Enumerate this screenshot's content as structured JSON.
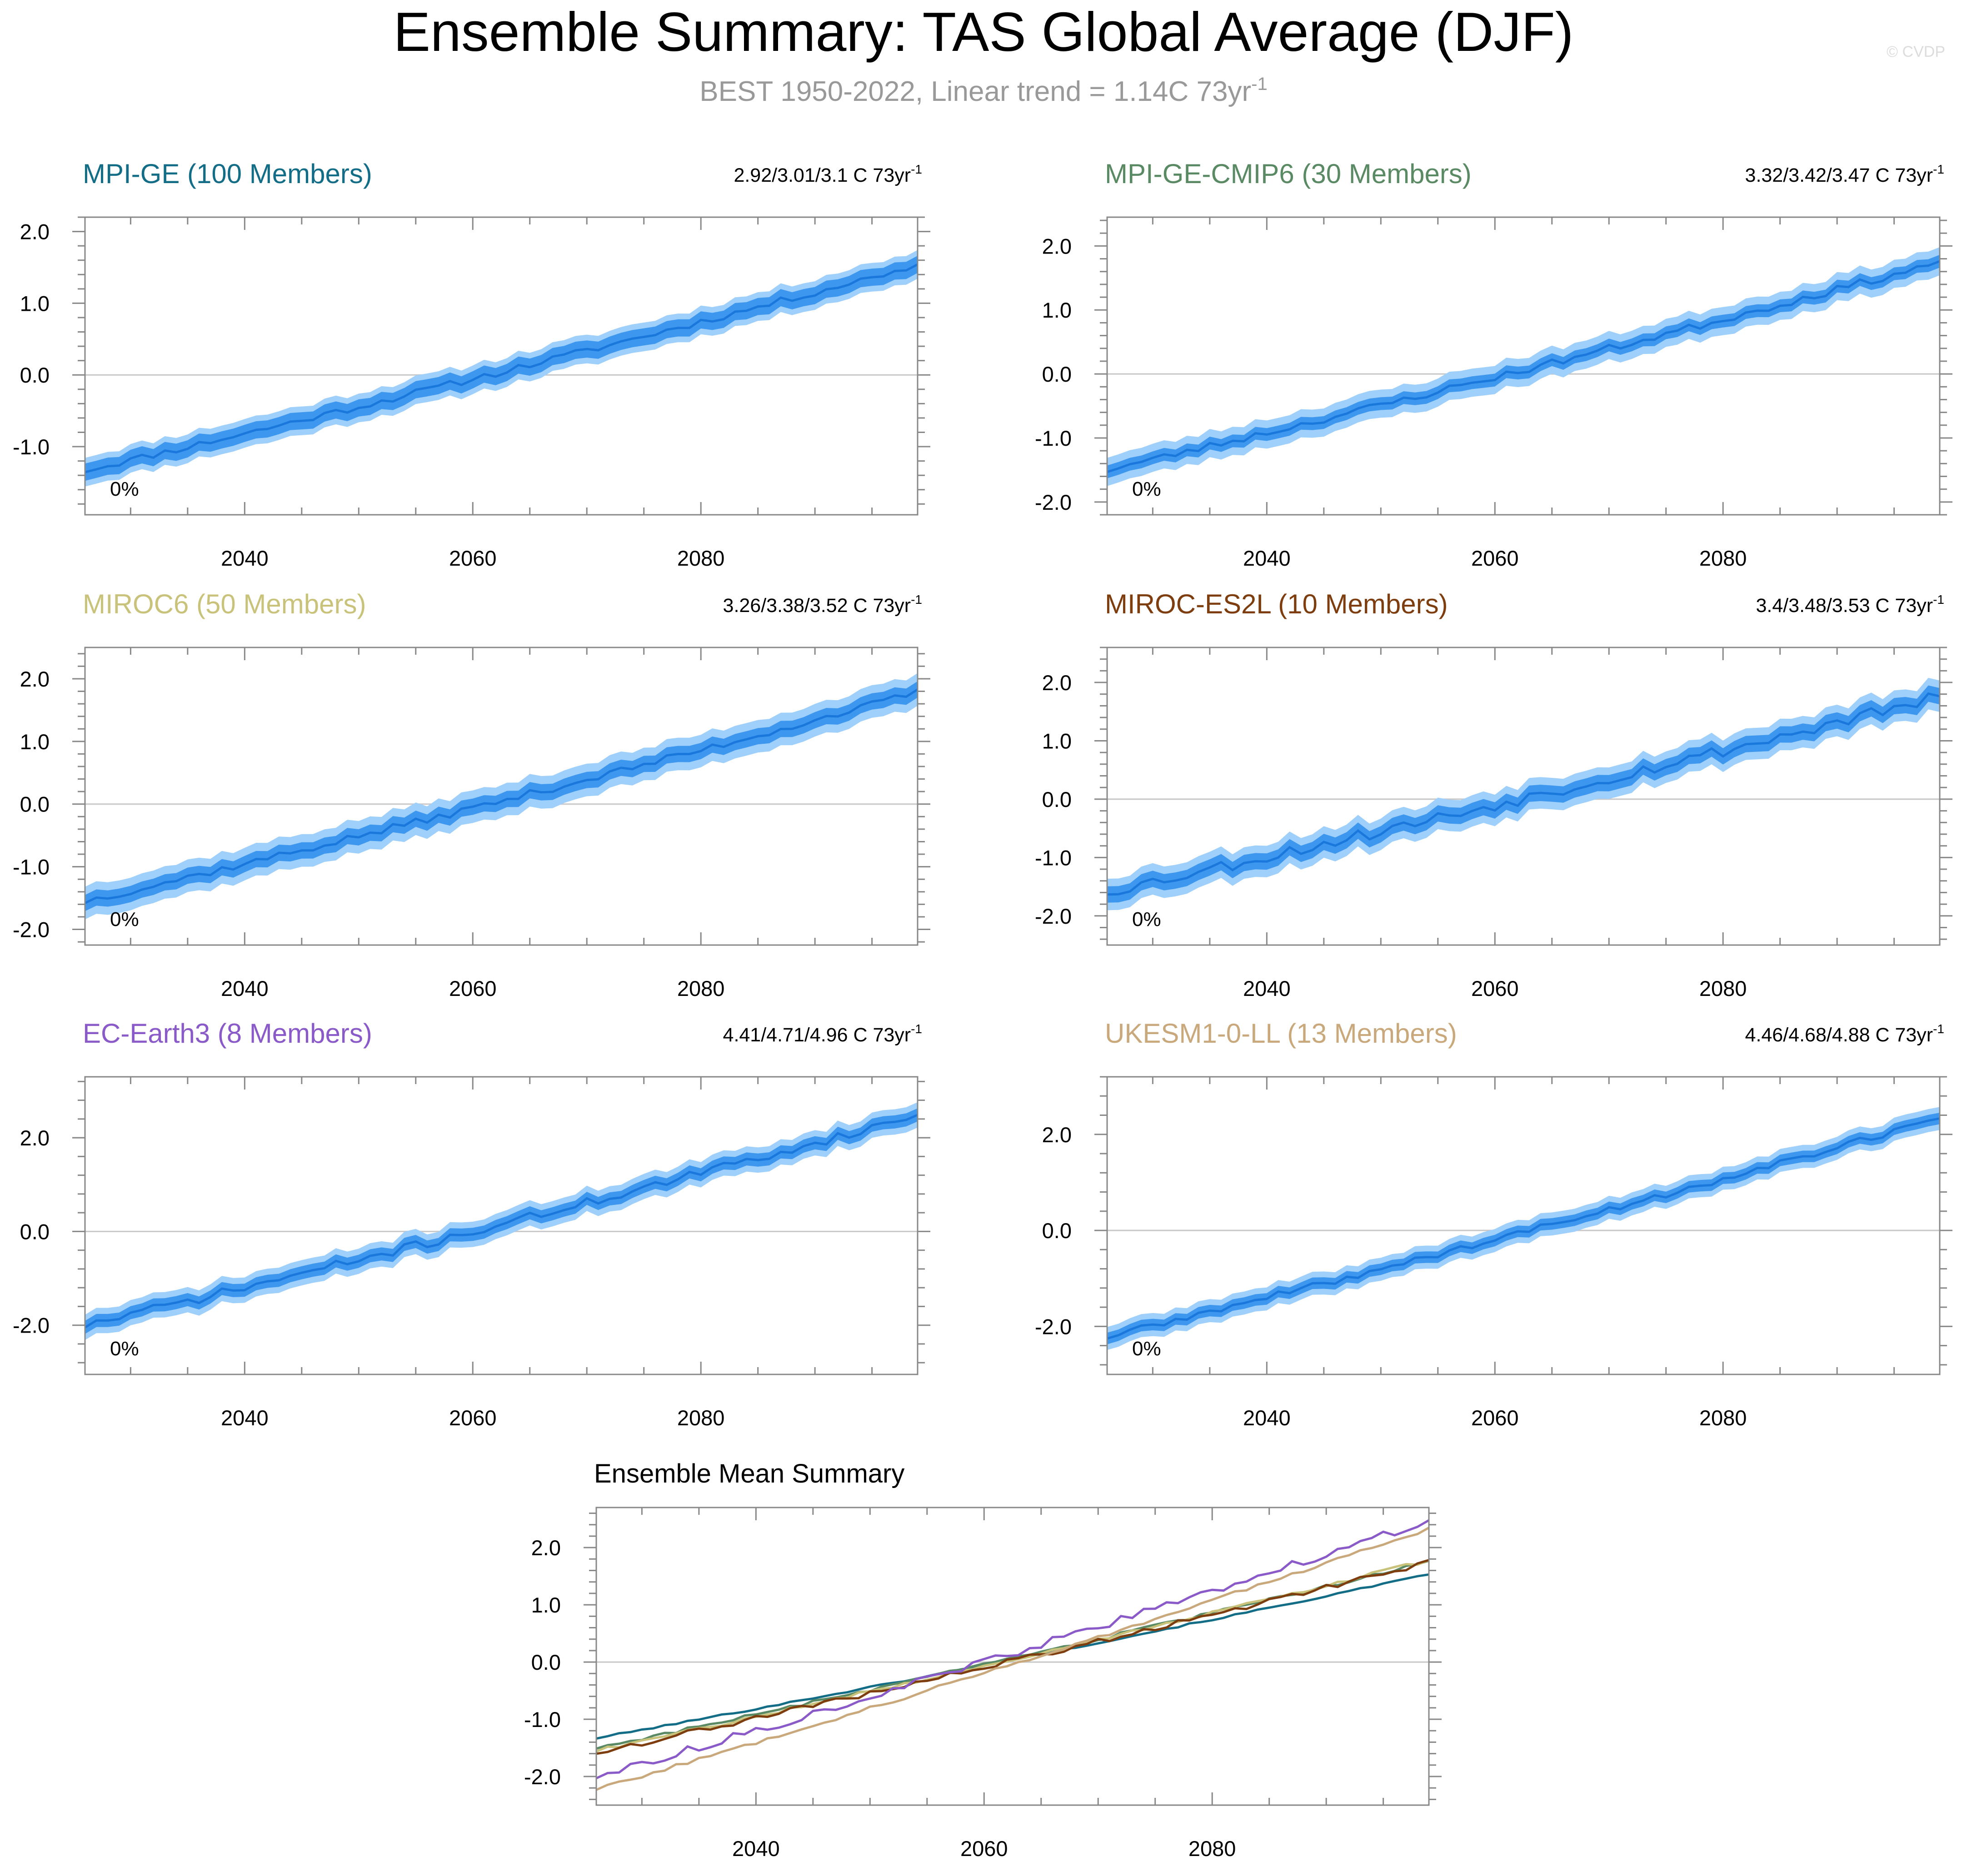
{
  "figure": {
    "title": "Ensemble Summary: TAS Global Average (DJF)",
    "subtitle": "BEST 1950-2022, Linear trend = 1.14C 73yr",
    "subtitle_sup": "-1",
    "watermark": "© CVDP"
  },
  "colors": {
    "band_outer": "#9fd0fb",
    "band_inner": "#3e97ef",
    "mean_line": "#1a78dc",
    "zero_line": "#c8c8c8",
    "axis": "#888888",
    "title": "#000000",
    "subtitle": "#999999"
  },
  "chart_data": [
    {
      "type": "area",
      "panel_title": "MPI-GE (100 Members)",
      "title_color": "#136d86",
      "trend_text": "2.92/3.01/3.1 C 73yr",
      "trend_sup": "-1",
      "percent_label": "0%",
      "x_range": [
        2026,
        2099
      ],
      "xlim": [
        2026,
        2099
      ],
      "ylim": [
        -1.95,
        2.2
      ],
      "y_ticks": [
        -1.0,
        0.0,
        1.0,
        2.0
      ],
      "y_tick_labels": [
        "-1.0",
        "0.0",
        "1.0",
        "2.0"
      ],
      "x_ticks": [
        2040,
        2060,
        2080
      ],
      "x_tick_labels": [
        "2040",
        "2060",
        "2080"
      ],
      "start": -1.33,
      "end": 1.53,
      "inner_width": 0.12,
      "outer_width": 0.2,
      "noise": 0.05,
      "seed": 11
    },
    {
      "type": "area",
      "panel_title": "MPI-GE-CMIP6 (30 Members)",
      "title_color": "#5a8a64",
      "trend_text": "3.32/3.42/3.47 C 73yr",
      "trend_sup": "-1",
      "percent_label": "0%",
      "x_range": [
        2026,
        2099
      ],
      "xlim": [
        2026,
        2099
      ],
      "ylim": [
        -2.2,
        2.45
      ],
      "y_ticks": [
        -2.0,
        -1.0,
        0.0,
        1.0,
        2.0
      ],
      "y_tick_labels": [
        "-2.0",
        "-1.0",
        "0.0",
        "1.0",
        "2.0"
      ],
      "x_ticks": [
        2040,
        2060,
        2080
      ],
      "x_tick_labels": [
        "2040",
        "2060",
        "2080"
      ],
      "start": -1.5,
      "end": 1.75,
      "inner_width": 0.1,
      "outer_width": 0.22,
      "noise": 0.06,
      "seed": 23
    },
    {
      "type": "area",
      "panel_title": "MIROC6 (50 Members)",
      "title_color": "#c9c27a",
      "trend_text": "3.26/3.38/3.52 C 73yr",
      "trend_sup": "-1",
      "percent_label": "0%",
      "x_range": [
        2026,
        2099
      ],
      "xlim": [
        2026,
        2099
      ],
      "ylim": [
        -2.25,
        2.5
      ],
      "y_ticks": [
        -2.0,
        -1.0,
        0.0,
        1.0,
        2.0
      ],
      "y_tick_labels": [
        "-2.0",
        "-1.0",
        "0.0",
        "1.0",
        "2.0"
      ],
      "x_ticks": [
        2040,
        2060,
        2080
      ],
      "x_tick_labels": [
        "2040",
        "2060",
        "2080"
      ],
      "start": -1.55,
      "end": 1.78,
      "inner_width": 0.13,
      "outer_width": 0.26,
      "noise": 0.06,
      "seed": 37
    },
    {
      "type": "area",
      "panel_title": "MIROC-ES2L (10 Members)",
      "title_color": "#7e3d0e",
      "trend_text": "3.4/3.48/3.53 C 73yr",
      "trend_sup": "-1",
      "percent_label": "0%",
      "x_range": [
        2026,
        2099
      ],
      "xlim": [
        2026,
        2099
      ],
      "ylim": [
        -2.5,
        2.6
      ],
      "y_ticks": [
        -2.0,
        -1.0,
        0.0,
        1.0,
        2.0
      ],
      "y_tick_labels": [
        "-2.0",
        "-1.0",
        "0.0",
        "1.0",
        "2.0"
      ],
      "x_ticks": [
        2040,
        2060,
        2080
      ],
      "x_tick_labels": [
        "2040",
        "2060",
        "2080"
      ],
      "start": -1.58,
      "end": 1.75,
      "inner_width": 0.14,
      "outer_width": 0.27,
      "noise": 0.11,
      "seed": 53
    },
    {
      "type": "area",
      "panel_title": "EC-Earth3 (8 Members)",
      "title_color": "#8a5ac9",
      "trend_text": "4.41/4.71/4.96 C 73yr",
      "trend_sup": "-1",
      "percent_label": "0%",
      "x_range": [
        2026,
        2099
      ],
      "xlim": [
        2026,
        2099
      ],
      "ylim": [
        -3.05,
        3.3
      ],
      "y_ticks": [
        -2.0,
        0.0,
        2.0
      ],
      "y_tick_labels": [
        "-2.0",
        "0.0",
        "2.0"
      ],
      "x_ticks": [
        2040,
        2060,
        2080
      ],
      "x_tick_labels": [
        "2040",
        "2060",
        "2080"
      ],
      "start": -2.0,
      "end": 2.48,
      "inner_width": 0.14,
      "outer_width": 0.27,
      "noise": 0.1,
      "seed": 71
    },
    {
      "type": "area",
      "panel_title": "UKESM1-0-LL (13 Members)",
      "title_color": "#c9a87c",
      "trend_text": "4.46/4.68/4.88 C 73yr",
      "trend_sup": "-1",
      "percent_label": "0%",
      "x_range": [
        2026,
        2099
      ],
      "xlim": [
        2026,
        2099
      ],
      "ylim": [
        -3.0,
        3.2
      ],
      "y_ticks": [
        -2.0,
        0.0,
        2.0
      ],
      "y_tick_labels": [
        "-2.0",
        "0.0",
        "2.0"
      ],
      "x_ticks": [
        2040,
        2060,
        2080
      ],
      "x_tick_labels": [
        "2040",
        "2060",
        "2080"
      ],
      "start": -2.22,
      "end": 2.33,
      "inner_width": 0.12,
      "outer_width": 0.24,
      "noise": 0.07,
      "seed": 89
    },
    {
      "type": "line",
      "panel_title": "Ensemble Mean Summary",
      "x_range": [
        2026,
        2099
      ],
      "xlim": [
        2026,
        2099
      ],
      "ylim": [
        -2.5,
        2.7
      ],
      "y_ticks": [
        -2.0,
        -1.0,
        0.0,
        1.0,
        2.0
      ],
      "y_tick_labels": [
        "-2.0",
        "-1.0",
        "0.0",
        "1.0",
        "2.0"
      ],
      "x_ticks": [
        2040,
        2060,
        2080
      ],
      "x_tick_labels": [
        "2040",
        "2060",
        "2080"
      ],
      "series": [
        {
          "color": "#136d86",
          "start": -1.33,
          "end": 1.53,
          "noise": 0.015,
          "seed": 101
        },
        {
          "color": "#5a8a64",
          "start": -1.5,
          "end": 1.75,
          "noise": 0.03,
          "seed": 103
        },
        {
          "color": "#c9c27a",
          "start": -1.55,
          "end": 1.78,
          "noise": 0.03,
          "seed": 107
        },
        {
          "color": "#7e3d0e",
          "start": -1.58,
          "end": 1.75,
          "noise": 0.05,
          "seed": 109
        },
        {
          "color": "#8a5ac9",
          "start": -2.0,
          "end": 2.48,
          "noise": 0.07,
          "seed": 113
        },
        {
          "color": "#c9a87c",
          "start": -2.22,
          "end": 2.33,
          "noise": 0.03,
          "seed": 127
        }
      ]
    }
  ]
}
